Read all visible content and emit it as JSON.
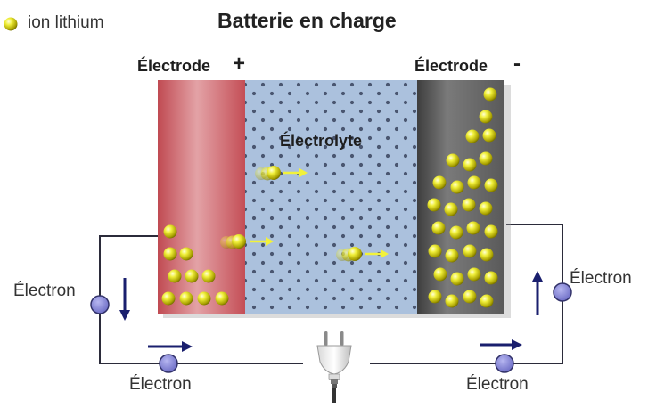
{
  "legend": {
    "label": "ion lithium",
    "ion_color": "#e6e61e"
  },
  "title": "Batterie en charge",
  "electrodes": {
    "positive": {
      "label": "Électrode",
      "sign": "+",
      "color": "#c8545a"
    },
    "negative": {
      "label": "Électrode",
      "sign": "-",
      "color": "#555555"
    }
  },
  "electrolyte": {
    "label": "Électrolyte",
    "color": "#aac0dc"
  },
  "electron_labels": {
    "left": "Électron",
    "bottom_left": "Électron",
    "bottom_right": "Électron",
    "right": "Électron"
  },
  "colors": {
    "wire": "#2b2b3a",
    "electron": "#7c7ccc",
    "arrow": "#1a1f6e",
    "ion_arrow": "#f2f23a"
  },
  "icons": {
    "plug": "power-plug-icon"
  }
}
